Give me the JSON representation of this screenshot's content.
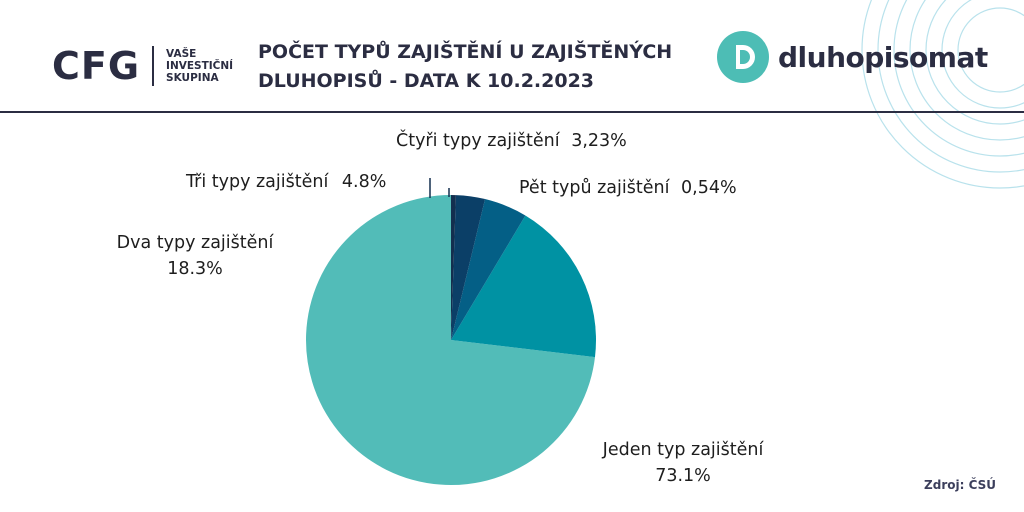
{
  "header": {
    "cfg_mark": "CFG",
    "cfg_tagline": [
      "VAŠE",
      "INVESTIČNÍ",
      "SKUPINA"
    ],
    "title_lines": [
      "POČET TYPŮ ZAJIŠTĚNÍ U ZAJIŠTĚNÝCH",
      "DLUHOPISŮ - DATA K 10.2.2023"
    ],
    "brand_name": "dluhopisomat"
  },
  "footer": {
    "source": "Zdroj: ČSÚ"
  },
  "colors": {
    "text": "#2b2d42",
    "brand_teal": "#4dbdb5",
    "rings": "#b9e2ec"
  },
  "chart_data": {
    "type": "pie",
    "title": "POČET TYPŮ ZAJIŠTĚNÍ U ZAJIŠTĚNÝCH DLUHOPISŮ - DATA K 10.2.2023",
    "slices": [
      {
        "name": "Jeden typ zajištění",
        "value": 73.1,
        "value_label": "73.1%",
        "color": "#52bcb8"
      },
      {
        "name": "Dva typy zajištění",
        "value": 18.3,
        "value_label": "18.3%",
        "color": "#0092a3"
      },
      {
        "name": "Tři typy zajištění",
        "value": 4.8,
        "value_label": "4.8%",
        "color": "#045f86"
      },
      {
        "name": "Čtyři typy zajištění",
        "value": 3.23,
        "value_label": "3,23%",
        "color": "#0b3f67"
      },
      {
        "name": "Pět typů zajištění",
        "value": 0.54,
        "value_label": "0,54%",
        "color": "#132f4f"
      }
    ],
    "start": "12 o'clock",
    "direction": "clockwise",
    "legend": "none (labels beside slices)"
  }
}
